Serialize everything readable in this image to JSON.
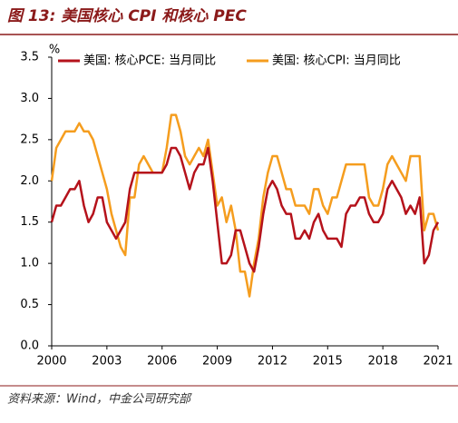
{
  "chart_data": {
    "type": "line",
    "title": "图 13: 美国核心 CPI 和核心 PEC",
    "ylabel": "%",
    "source": "资料来源：Wind，中金公司研究部",
    "x": [
      2000,
      2000.25,
      2000.5,
      2000.75,
      2001,
      2001.25,
      2001.5,
      2001.75,
      2002,
      2002.25,
      2002.5,
      2002.75,
      2003,
      2003.25,
      2003.5,
      2003.75,
      2004,
      2004.25,
      2004.5,
      2004.75,
      2005,
      2005.25,
      2005.5,
      2005.75,
      2006,
      2006.25,
      2006.5,
      2006.75,
      2007,
      2007.25,
      2007.5,
      2007.75,
      2008,
      2008.25,
      2008.5,
      2008.75,
      2009,
      2009.25,
      2009.5,
      2009.75,
      2010,
      2010.25,
      2010.5,
      2010.75,
      2011,
      2011.25,
      2011.5,
      2011.75,
      2012,
      2012.25,
      2012.5,
      2012.75,
      2013,
      2013.25,
      2013.5,
      2013.75,
      2014,
      2014.25,
      2014.5,
      2014.75,
      2015,
      2015.25,
      2015.5,
      2015.75,
      2016,
      2016.25,
      2016.5,
      2016.75,
      2017,
      2017.25,
      2017.5,
      2017.75,
      2018,
      2018.25,
      2018.5,
      2018.75,
      2019,
      2019.25,
      2019.5,
      2019.75,
      2020,
      2020.25,
      2020.5,
      2020.75,
      2021
    ],
    "series": [
      {
        "name": "美国: 核心PCE: 当月同比",
        "color": "#b5121b",
        "values": [
          1.5,
          1.7,
          1.7,
          1.8,
          1.9,
          1.9,
          2.0,
          1.7,
          1.5,
          1.6,
          1.8,
          1.8,
          1.5,
          1.4,
          1.3,
          1.4,
          1.5,
          1.9,
          2.1,
          2.1,
          2.1,
          2.1,
          2.1,
          2.1,
          2.1,
          2.2,
          2.4,
          2.4,
          2.3,
          2.1,
          1.9,
          2.1,
          2.2,
          2.2,
          2.4,
          2.0,
          1.5,
          1.0,
          1.0,
          1.1,
          1.4,
          1.4,
          1.2,
          1.0,
          0.9,
          1.2,
          1.6,
          1.9,
          2.0,
          1.9,
          1.7,
          1.6,
          1.6,
          1.3,
          1.3,
          1.4,
          1.3,
          1.5,
          1.6,
          1.4,
          1.3,
          1.3,
          1.3,
          1.2,
          1.6,
          1.7,
          1.7,
          1.8,
          1.8,
          1.6,
          1.5,
          1.5,
          1.6,
          1.9,
          2.0,
          1.9,
          1.8,
          1.6,
          1.7,
          1.6,
          1.8,
          1.0,
          1.1,
          1.4,
          1.5
        ]
      },
      {
        "name": "美国: 核心CPI: 当月同比",
        "color": "#f59d1e",
        "values": [
          2.0,
          2.4,
          2.5,
          2.6,
          2.6,
          2.6,
          2.7,
          2.6,
          2.6,
          2.5,
          2.3,
          2.1,
          1.9,
          1.6,
          1.4,
          1.2,
          1.1,
          1.8,
          1.8,
          2.2,
          2.3,
          2.2,
          2.1,
          2.1,
          2.1,
          2.4,
          2.8,
          2.8,
          2.6,
          2.3,
          2.2,
          2.3,
          2.4,
          2.3,
          2.5,
          2.1,
          1.7,
          1.8,
          1.5,
          1.7,
          1.4,
          0.9,
          0.9,
          0.6,
          1.0,
          1.3,
          1.8,
          2.1,
          2.3,
          2.3,
          2.1,
          1.9,
          1.9,
          1.7,
          1.7,
          1.7,
          1.6,
          1.9,
          1.9,
          1.7,
          1.6,
          1.8,
          1.8,
          2.0,
          2.2,
          2.2,
          2.2,
          2.2,
          2.2,
          1.8,
          1.7,
          1.7,
          1.9,
          2.2,
          2.3,
          2.2,
          2.1,
          2.0,
          2.3,
          2.3,
          2.3,
          1.4,
          1.6,
          1.6,
          1.4
        ]
      }
    ],
    "xlim": [
      2000,
      2021
    ],
    "xticks": [
      2000,
      2003,
      2006,
      2009,
      2012,
      2015,
      2018,
      2021
    ],
    "ylim": [
      0,
      3.5
    ],
    "yticks": [
      {
        "value": 0,
        "label": "0.0"
      },
      {
        "value": 0.5,
        "label": "0.5"
      },
      {
        "value": 1,
        "label": "1.0"
      },
      {
        "value": 1.5,
        "label": "1.5"
      },
      {
        "value": 2,
        "label": "2.0"
      },
      {
        "value": 2.5,
        "label": "2.5"
      },
      {
        "value": 3,
        "label": "3.0"
      },
      {
        "value": 3.5,
        "label": "3.5"
      }
    ],
    "legend": "top"
  }
}
